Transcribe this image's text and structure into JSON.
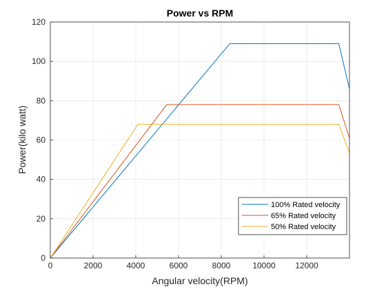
{
  "chart_data": {
    "type": "line",
    "title": "Power vs RPM",
    "xlabel": "Angular velocity(RPM)",
    "ylabel": "Power(kilo watt)",
    "xlim": [
      0,
      14000
    ],
    "ylim": [
      0,
      120
    ],
    "xticks": [
      0,
      2000,
      4000,
      6000,
      8000,
      10000,
      12000
    ],
    "yticks": [
      0,
      20,
      40,
      60,
      80,
      100,
      120
    ],
    "grid": true,
    "legend_position": "bottom-right",
    "series": [
      {
        "name": "100% Rated velocity",
        "color": "#0072BD",
        "x": [
          0,
          8400,
          13500,
          14000
        ],
        "y": [
          0,
          109,
          109,
          86
        ]
      },
      {
        "name": "65% Rated velocity",
        "color": "#D95319",
        "x": [
          0,
          5450,
          13500,
          14000
        ],
        "y": [
          0,
          78,
          78,
          61
        ]
      },
      {
        "name": "50% Rated velocity",
        "color": "#EDB120",
        "x": [
          0,
          4100,
          13500,
          14000
        ],
        "y": [
          0,
          68,
          68,
          53.5
        ]
      }
    ]
  }
}
